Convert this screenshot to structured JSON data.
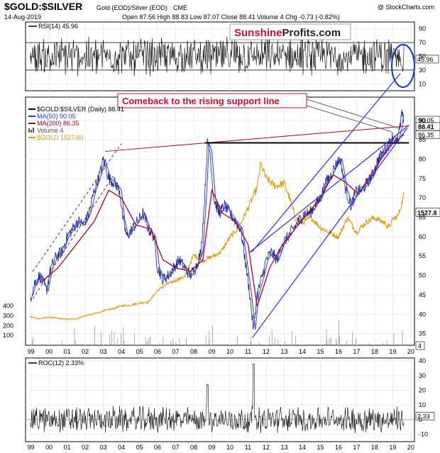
{
  "header": {
    "symbol": "$GOLD:$SILVER",
    "description": "Gold (EOD)/Silver (EOD)",
    "exchange": "CME",
    "copyright": "@ StockCharts.com",
    "date": "14-Aug-2019",
    "quote": "Open 87.56  High 88.83  Low 87.07  Close 88.41  Volume 4  Chg -0.73 (-0.82%)"
  },
  "watermark": {
    "part1": "Sunshine",
    "part2": "Profits.com",
    "color1": "#c8102e",
    "color2": "#222222"
  },
  "annotation": {
    "text": "Comeback to the rising support line",
    "color": "#c8102e"
  },
  "colors": {
    "price": "#1a237e",
    "ma50": "#2a3cff",
    "ma200": "#b0002a",
    "gold": "#d4a017",
    "volume": "#b08080",
    "trend": "#2a2aff",
    "hline": "#000000",
    "ellipse": "#1030d0"
  },
  "chart_data": [
    {
      "type": "line",
      "panel": "rsi",
      "legend": "RSI(14) 45.96",
      "last_value_label": "45.96",
      "y_ticks": [
        "90",
        "70",
        "50",
        "30",
        "10"
      ],
      "ylim": [
        0,
        100
      ],
      "overbought": 70,
      "oversold": 30,
      "last_value": 45.96
    },
    {
      "type": "line",
      "panel": "price",
      "x_ticks": [
        "99",
        "00",
        "01",
        "02",
        "03",
        "04",
        "05",
        "06",
        "07",
        "08",
        "09",
        "10",
        "11",
        "12",
        "13",
        "14",
        "15",
        "16",
        "17",
        "18",
        "19",
        "20"
      ],
      "x_range": [
        1998.7,
        2020.2
      ],
      "y_ticks_right": [
        "90",
        "85",
        "80",
        "75",
        "70",
        "65",
        "60",
        "55",
        "50",
        "45",
        "40",
        "35"
      ],
      "y_ticks_left": [
        "400",
        "300",
        "200",
        "100"
      ],
      "ylim": [
        32,
        96
      ],
      "legend": [
        {
          "label": "$GOLD:$SILVER (Daily) 88.41",
          "color": "#000000"
        },
        {
          "label": "MA(50) 90.05",
          "color": "#2a3cff"
        },
        {
          "label": "MA(200) 86.35",
          "color": "#b0002a"
        },
        {
          "label": "Volume 4",
          "color": "#555555"
        },
        {
          "label": "$GOLD 1527.80",
          "color": "#d4a017"
        }
      ],
      "last_labels": [
        {
          "text": "90.05",
          "value": 90.05,
          "bg": "#ffffff",
          "fg": "#000000"
        },
        {
          "text": "88.41",
          "value": 88.41,
          "bg": "#ffffff",
          "fg": "#000000",
          "bold": true
        },
        {
          "text": "86.35",
          "value": 86.35,
          "bg": "#ffffff",
          "fg": "#000000"
        }
      ],
      "gold_label": {
        "text": "1527.8",
        "value": 1527.8
      },
      "volume_label": {
        "text": "4"
      },
      "gold_scale": [
        0,
        2000
      ],
      "gold_ylim_px_note": "left axis",
      "series": [
        {
          "name": "$GOLD:$SILVER",
          "x": [
            1998.95,
            1999.2,
            1999.5,
            1999.85,
            2000.1,
            2000.4,
            2000.7,
            2001.0,
            2001.3,
            2001.6,
            2001.9,
            2002.2,
            2002.5,
            2002.8,
            2003.0,
            2003.3,
            2003.6,
            2003.9,
            2004.1,
            2004.3,
            2004.6,
            2004.9,
            2005.2,
            2005.5,
            2005.8,
            2006.0,
            2006.3,
            2006.6,
            2006.9,
            2007.2,
            2007.5,
            2007.8,
            2008.1,
            2008.4,
            2008.6,
            2008.75,
            2008.9,
            2009.1,
            2009.4,
            2009.7,
            2010.0,
            2010.3,
            2010.6,
            2010.9,
            2011.1,
            2011.3,
            2011.5,
            2011.8,
            2012.0,
            2012.3,
            2012.6,
            2012.9,
            2013.2,
            2013.5,
            2013.8,
            2014.1,
            2014.4,
            2014.7,
            2015.0,
            2015.3,
            2015.6,
            2015.9,
            2016.1,
            2016.4,
            2016.7,
            2017.0,
            2017.3,
            2017.6,
            2017.9,
            2018.2,
            2018.5,
            2018.8,
            2019.0,
            2019.2,
            2019.4,
            2019.55,
            2019.62
          ],
          "values": [
            44,
            48,
            50,
            46,
            52,
            55,
            56,
            60,
            62,
            64,
            63,
            66,
            72,
            76,
            80,
            75,
            74,
            72,
            64,
            60,
            62,
            64,
            66,
            62,
            60,
            52,
            49,
            50,
            52,
            54,
            52,
            50,
            52,
            56,
            70,
            84,
            82,
            70,
            66,
            68,
            66,
            64,
            62,
            52,
            45,
            36,
            45,
            50,
            54,
            56,
            54,
            58,
            60,
            62,
            64,
            66,
            66,
            68,
            70,
            74,
            76,
            79,
            80,
            72,
            68,
            72,
            72,
            74,
            76,
            80,
            82,
            84,
            86,
            84,
            88,
            93,
            88.41
          ]
        },
        {
          "name": "MA(200)",
          "x": [
            1999.5,
            2000.5,
            2001.5,
            2002.5,
            2003.3,
            2004.0,
            2004.8,
            2005.6,
            2006.3,
            2007.0,
            2007.8,
            2008.5,
            2009.0,
            2009.6,
            2010.3,
            2011.0,
            2011.5,
            2012.2,
            2012.9,
            2013.6,
            2014.3,
            2015.0,
            2015.7,
            2016.4,
            2017.1,
            2017.8,
            2018.5,
            2019.0,
            2019.62
          ],
          "values": [
            48,
            52,
            58,
            64,
            72,
            70,
            63,
            62,
            54,
            52,
            51,
            54,
            72,
            66,
            64,
            58,
            42,
            52,
            58,
            62,
            66,
            70,
            76,
            74,
            71,
            76,
            81,
            84,
            86.35
          ]
        },
        {
          "name": "$GOLD",
          "x": [
            1998.95,
            1999.5,
            2000.0,
            2000.5,
            2001.0,
            2001.5,
            2002.0,
            2002.5,
            2003.0,
            2003.5,
            2004.0,
            2004.5,
            2005.0,
            2005.5,
            2006.0,
            2006.5,
            2007.0,
            2007.5,
            2008.0,
            2008.5,
            2009.0,
            2009.5,
            2010.0,
            2010.5,
            2011.0,
            2011.5,
            2011.7,
            2012.0,
            2012.5,
            2013.0,
            2013.3,
            2013.6,
            2014.0,
            2014.5,
            2015.0,
            2015.5,
            2016.0,
            2016.5,
            2017.0,
            2017.5,
            2018.0,
            2018.5,
            2018.8,
            2019.0,
            2019.3,
            2019.62
          ],
          "values": [
            290,
            270,
            285,
            275,
            265,
            270,
            300,
            320,
            350,
            370,
            400,
            410,
            430,
            440,
            560,
            620,
            660,
            700,
            920,
            860,
            900,
            950,
            1100,
            1200,
            1400,
            1600,
            1850,
            1700,
            1620,
            1650,
            1500,
            1300,
            1250,
            1300,
            1200,
            1150,
            1100,
            1300,
            1150,
            1250,
            1300,
            1250,
            1200,
            1280,
            1320,
            1527.8
          ]
        }
      ],
      "support_line": {
        "x": [
          2011.25,
          2019.8
        ],
        "y": [
          34,
          88
        ]
      },
      "upper_channel": {
        "x": [
          2011.2,
          2019.9
        ],
        "y": [
          56,
          120
        ]
      },
      "resistance_line": {
        "x": [
          2003.1,
          2019.9
        ],
        "y": [
          82,
          88.6
        ]
      },
      "horizontal_line": {
        "x": [
          2008.6,
          2019.9
        ],
        "y": [
          84.2,
          84.2
        ]
      },
      "early_channel_lower": {
        "x": [
          1999.1,
          2003.6
        ],
        "y": [
          44,
          76
        ]
      },
      "early_channel_upper": {
        "x": [
          1999.1,
          2004.0
        ],
        "y": [
          51,
          84
        ]
      }
    },
    {
      "type": "line",
      "panel": "roc",
      "legend": "ROC(12) 2.33%",
      "last_value_label": "2.33",
      "y_ticks": [
        "40",
        "30",
        "20",
        "10",
        "0",
        "-10"
      ],
      "ylim": [
        -15,
        42
      ],
      "last_value": 2.33,
      "x_ticks": [
        "99",
        "00",
        "01",
        "02",
        "03",
        "04",
        "05",
        "06",
        "07",
        "08",
        "09",
        "10",
        "11",
        "12",
        "13",
        "14",
        "15",
        "16",
        "17",
        "18",
        "19",
        "20"
      ]
    }
  ]
}
